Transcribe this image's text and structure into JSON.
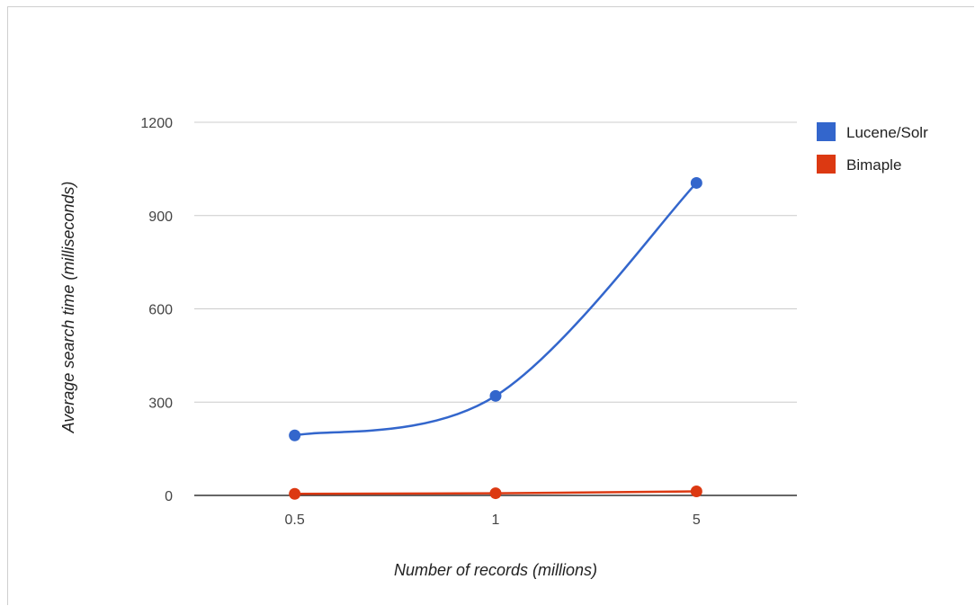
{
  "chart_data": {
    "type": "line",
    "title": "",
    "xlabel": "Number of records (millions)",
    "ylabel": "Average search time (milliseconds)",
    "categories": [
      "0.5",
      "1",
      "5"
    ],
    "y_ticks": [
      "0",
      "300",
      "600",
      "900",
      "1200"
    ],
    "ylim": [
      0,
      1200
    ],
    "grid": true,
    "legend_position": "right",
    "smooth": true,
    "series": [
      {
        "name": "Lucene/Solr",
        "color": "#3366cc",
        "values": [
          193,
          320,
          1005
        ]
      },
      {
        "name": "Bimaple",
        "color": "#dc3912",
        "values": [
          5,
          7,
          13
        ]
      }
    ]
  }
}
